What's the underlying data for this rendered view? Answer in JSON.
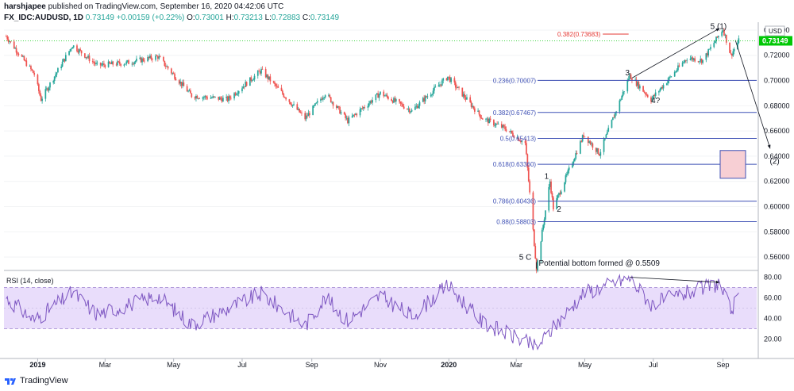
{
  "header": {
    "publisher": "harshjapee",
    "published_text": "published on TradingView.com, September 16, 2020 04:42:06 UTC",
    "symbol": "FX_IDC:AUDUSD, 1D",
    "last": "0.73149",
    "change": "+0.00159 (+0.22%)",
    "o_label": "O:",
    "o_val": "0.73001",
    "h_label": "H:",
    "h_val": "0.73213",
    "l_label": "L:",
    "l_val": "0.72883",
    "c_label": "C:",
    "c_val": "0.73149"
  },
  "footer": {
    "brand": "TradingView"
  },
  "price_axis": {
    "currency": "USD",
    "ticks": [
      "0.74000",
      "0.72000",
      "0.70000",
      "0.68000",
      "0.66000",
      "0.64000",
      "0.62000",
      "0.60000",
      "0.58000",
      "0.56000"
    ],
    "last_price_label": "0.73149"
  },
  "rsi_axis": {
    "ticks": [
      "80.00",
      "60.00",
      "40.00",
      "20.00"
    ]
  },
  "time_axis": {
    "labels": [
      "2019",
      "Mar",
      "May",
      "Jul",
      "Sep",
      "Nov",
      "2020",
      "Mar",
      "May",
      "Jul",
      "Sep"
    ]
  },
  "colors": {
    "up": "#26a69a",
    "down": "#ef5350",
    "fib": "#3f51b5",
    "rsi": "#7e57c2",
    "rsi_band": "#e9ddfb",
    "last": "#00c805",
    "red_line": "#e53935"
  },
  "chart_data": [
    {
      "type": "candlestick",
      "title": "FX_IDC:AUDUSD, 1D",
      "ylabel": "USD",
      "ylim": [
        0.55,
        0.745
      ],
      "x_range": [
        "2018-12-01",
        "2020-10-01"
      ],
      "anchors": [
        {
          "date": "2018-12-03",
          "price": 0.735
        },
        {
          "date": "2018-12-28",
          "price": 0.705
        },
        {
          "date": "2019-01-03",
          "price": 0.685
        },
        {
          "date": "2019-01-31",
          "price": 0.728
        },
        {
          "date": "2019-02-22",
          "price": 0.712
        },
        {
          "date": "2019-03-20",
          "price": 0.714
        },
        {
          "date": "2019-04-17",
          "price": 0.719
        },
        {
          "date": "2019-05-17",
          "price": 0.688
        },
        {
          "date": "2019-06-18",
          "price": 0.685
        },
        {
          "date": "2019-07-18",
          "price": 0.708
        },
        {
          "date": "2019-08-26",
          "price": 0.67
        },
        {
          "date": "2019-09-13",
          "price": 0.69
        },
        {
          "date": "2019-10-03",
          "price": 0.668
        },
        {
          "date": "2019-11-01",
          "price": 0.69
        },
        {
          "date": "2019-11-29",
          "price": 0.676
        },
        {
          "date": "2019-12-31",
          "price": 0.703
        },
        {
          "date": "2020-01-31",
          "price": 0.67
        },
        {
          "date": "2020-02-20",
          "price": 0.662
        },
        {
          "date": "2020-03-09",
          "price": 0.65
        },
        {
          "date": "2020-03-19",
          "price": 0.5509
        },
        {
          "date": "2020-03-31",
          "price": 0.62
        },
        {
          "date": "2020-04-03",
          "price": 0.599
        },
        {
          "date": "2020-04-30",
          "price": 0.657
        },
        {
          "date": "2020-05-14",
          "price": 0.642
        },
        {
          "date": "2020-06-10",
          "price": 0.704
        },
        {
          "date": "2020-06-29",
          "price": 0.685
        },
        {
          "date": "2020-07-31",
          "price": 0.718
        },
        {
          "date": "2020-08-14",
          "price": 0.716
        },
        {
          "date": "2020-09-01",
          "price": 0.741
        },
        {
          "date": "2020-09-08",
          "price": 0.72
        },
        {
          "date": "2020-09-15",
          "price": 0.7315
        }
      ],
      "fib_levels": [
        {
          "label": "0.382(0.73683)",
          "value": 0.73683,
          "color": "#e53935"
        },
        {
          "label": "0.236(0.70007)",
          "value": 0.70007
        },
        {
          "label": "0.382(0.67467)",
          "value": 0.67467
        },
        {
          "label": "0.5(0.65413)",
          "value": 0.65413
        },
        {
          "label": "0.618(0.63360)",
          "value": 0.6336
        },
        {
          "label": "0.786(0.60436)",
          "value": 0.60436
        },
        {
          "label": "0.88(0.58803)",
          "value": 0.58803
        }
      ],
      "last_price": 0.73149,
      "annotations": [
        {
          "text": "5 (1)",
          "date": "2020-08-28",
          "price": 0.741
        },
        {
          "text": "3",
          "date": "2020-06-08",
          "price": 0.704
        },
        {
          "text": "4?",
          "date": "2020-07-03",
          "price": 0.682
        },
        {
          "text": "1",
          "date": "2020-03-28",
          "price": 0.622
        },
        {
          "text": "2",
          "date": "2020-04-08",
          "price": 0.596
        },
        {
          "text": "5 C",
          "date": "2020-03-09",
          "price": 0.558
        },
        {
          "text": "Potential bottom formed @ 0.5509",
          "date": "2020-03-21",
          "price": 0.553
        },
        {
          "text": "(2)",
          "date": "2020-10-17",
          "price": 0.634
        }
      ]
    },
    {
      "type": "line",
      "title": "RSI (14, close)",
      "ylim": [
        5,
        85
      ],
      "band": [
        30,
        70
      ],
      "midline": 50,
      "anchors": [
        {
          "date": "2018-12-03",
          "value": 60
        },
        {
          "date": "2018-12-28",
          "value": 38
        },
        {
          "date": "2019-01-31",
          "value": 65
        },
        {
          "date": "2019-02-22",
          "value": 44
        },
        {
          "date": "2019-04-17",
          "value": 62
        },
        {
          "date": "2019-05-17",
          "value": 34
        },
        {
          "date": "2019-07-18",
          "value": 64
        },
        {
          "date": "2019-08-26",
          "value": 33
        },
        {
          "date": "2019-09-13",
          "value": 60
        },
        {
          "date": "2019-10-03",
          "value": 38
        },
        {
          "date": "2019-11-01",
          "value": 62
        },
        {
          "date": "2019-11-29",
          "value": 42
        },
        {
          "date": "2019-12-31",
          "value": 72
        },
        {
          "date": "2020-01-31",
          "value": 36
        },
        {
          "date": "2020-03-19",
          "value": 12
        },
        {
          "date": "2020-04-30",
          "value": 65
        },
        {
          "date": "2020-06-10",
          "value": 79
        },
        {
          "date": "2020-06-29",
          "value": 54
        },
        {
          "date": "2020-08-28",
          "value": 74
        },
        {
          "date": "2020-09-08",
          "value": 48
        },
        {
          "date": "2020-09-15",
          "value": 59
        }
      ]
    }
  ]
}
